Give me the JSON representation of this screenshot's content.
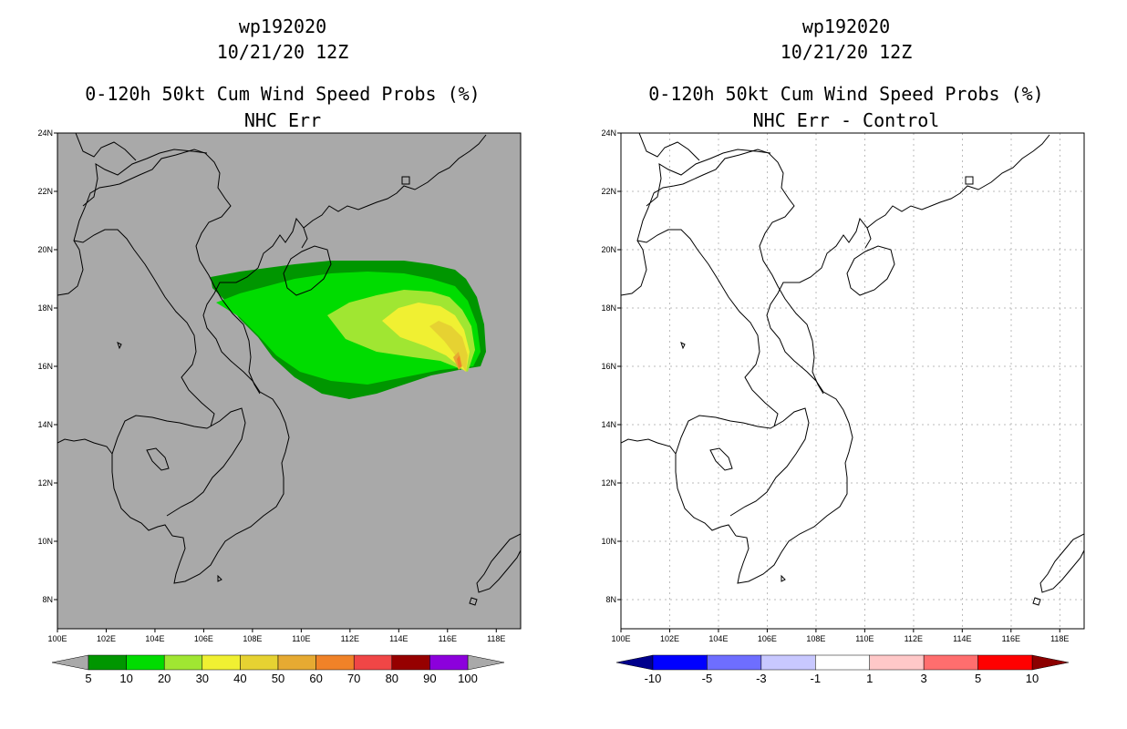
{
  "left_panel": {
    "storm": "wp192020",
    "datetime": "10/21/20 12Z",
    "product": "0-120h 50kt Cum Wind Speed Probs (%)",
    "subtitle": "NHC Err",
    "background_color": "#a9a9a9",
    "colorbar": {
      "labels": [
        "5",
        "10",
        "20",
        "30",
        "40",
        "50",
        "60",
        "70",
        "80",
        "90",
        "100"
      ],
      "colors": [
        "#009600",
        "#00dc00",
        "#a0e632",
        "#f0f032",
        "#e6d232",
        "#e6aa32",
        "#f08228",
        "#f04646",
        "#960000",
        "#8c00dc"
      ],
      "ends": [
        "#a9a9a9",
        "#a9a9a9"
      ]
    }
  },
  "right_panel": {
    "storm": "wp192020",
    "datetime": "10/21/20 12Z",
    "product": "0-120h 50kt Cum Wind Speed Probs (%)",
    "subtitle": "NHC Err - Control",
    "background_color": "#ffffff",
    "colorbar": {
      "labels": [
        "-10",
        "-5",
        "-3",
        "-1",
        "1",
        "3",
        "5",
        "10"
      ],
      "colors": [
        "#0000ff",
        "#6e6eff",
        "#c8c8ff",
        "#ffffff",
        "#ffc8c8",
        "#ff6e6e",
        "#ff0000"
      ],
      "ends": [
        "#00008c",
        "#8c0000"
      ]
    }
  },
  "axes": {
    "lon_labels": [
      "100E",
      "102E",
      "104E",
      "106E",
      "108E",
      "110E",
      "112E",
      "114E",
      "116E",
      "118E"
    ],
    "lat_labels": [
      "24N",
      "22N",
      "20N",
      "18N",
      "16N",
      "14N",
      "12N",
      "10N",
      "8N"
    ],
    "lon_range": [
      100,
      119
    ],
    "lat_range": [
      7,
      24
    ]
  }
}
